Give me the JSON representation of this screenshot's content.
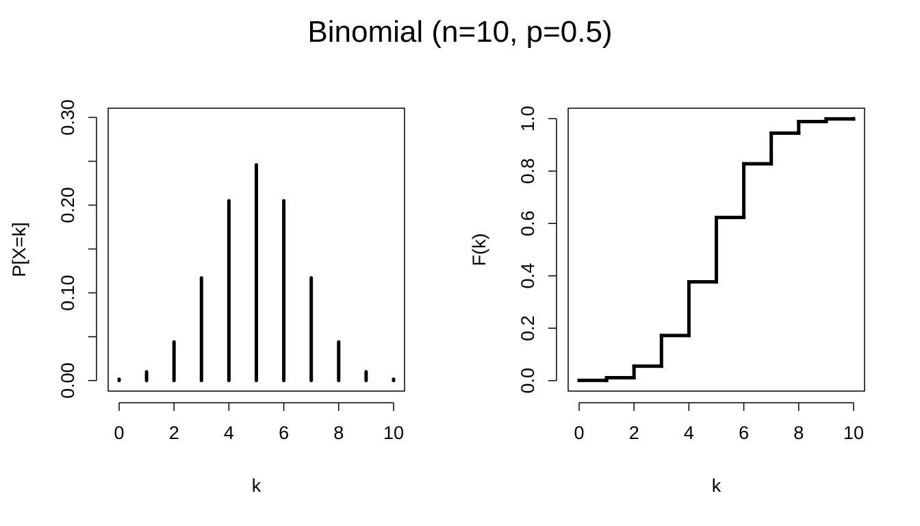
{
  "title": "Binomial (n=10, p=0.5)",
  "chart_data": [
    {
      "type": "bar",
      "subtype": "pmf-spikes",
      "x": [
        0,
        1,
        2,
        3,
        4,
        5,
        6,
        7,
        8,
        9,
        10
      ],
      "values": [
        0.001,
        0.01,
        0.044,
        0.117,
        0.205,
        0.246,
        0.205,
        0.117,
        0.044,
        0.01,
        0.001
      ],
      "xlabel": "k",
      "ylabel": "P[X=k]",
      "xlim": [
        -0.4,
        10.4
      ],
      "ylim": [
        -0.012,
        0.3105
      ],
      "xticks": [
        "0",
        "2",
        "4",
        "6",
        "8",
        "10"
      ],
      "yticks": [
        "0.00",
        "0.10",
        "0.20",
        "0.30"
      ],
      "yticks_minor": [
        0.05,
        0.15,
        0.25
      ],
      "grid": false,
      "color": "#000000"
    },
    {
      "type": "line",
      "subtype": "step-cdf",
      "x": [
        0,
        1,
        2,
        3,
        4,
        5,
        6,
        7,
        8,
        9,
        10
      ],
      "values": [
        0.001,
        0.011,
        0.055,
        0.172,
        0.377,
        0.623,
        0.828,
        0.945,
        0.989,
        0.999,
        1.0
      ],
      "xlabel": "k",
      "ylabel": "F(k)",
      "xlim": [
        -0.4,
        10.4
      ],
      "ylim": [
        -0.04,
        1.04
      ],
      "xticks": [
        "0",
        "2",
        "4",
        "6",
        "8",
        "10"
      ],
      "yticks": [
        "0.0",
        "0.2",
        "0.4",
        "0.6",
        "0.8",
        "1.0"
      ],
      "grid": false,
      "color": "#000000"
    }
  ]
}
